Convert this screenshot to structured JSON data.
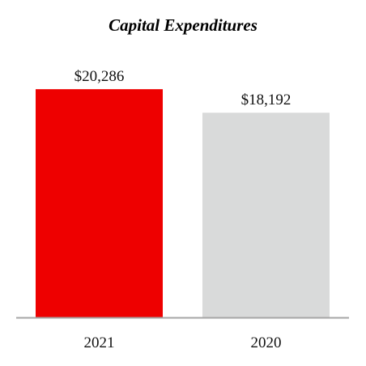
{
  "chart_data": {
    "type": "bar",
    "title": "Capital Expenditures",
    "xlabel": "",
    "ylabel": "",
    "categories": [
      "2021",
      "2020"
    ],
    "values": [
      20286,
      18192
    ],
    "value_labels": [
      "$20,286",
      "$18,192"
    ],
    "ylim": [
      0,
      22600
    ],
    "grid": false,
    "legend": "none",
    "colors": [
      "#ee0000",
      "#d9dada"
    ],
    "axis_color": "#a6a6a6"
  }
}
